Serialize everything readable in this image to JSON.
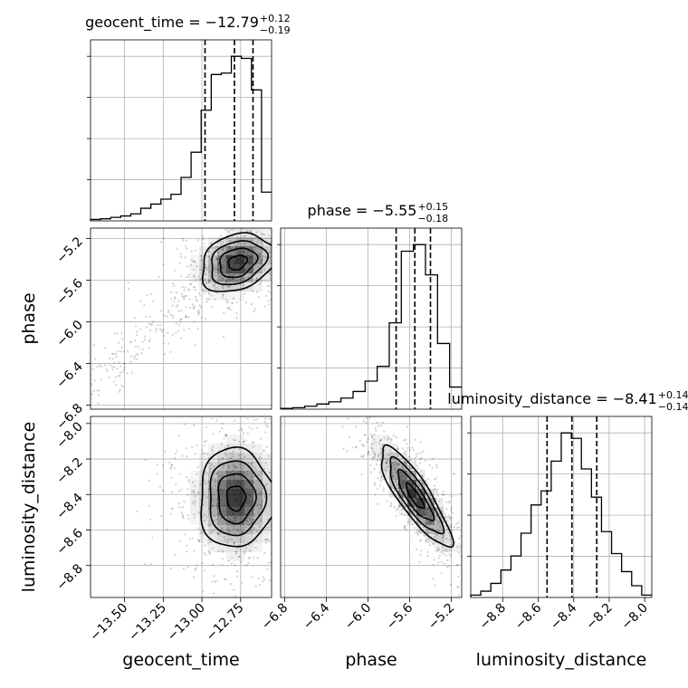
{
  "chart_data": {
    "type": "corner",
    "parameters": [
      "geocent_time",
      "phase",
      "luminosity_distance"
    ],
    "axis_labels": [
      "geocent_time",
      "phase",
      "luminosity_distance"
    ],
    "titles": [
      {
        "param": "geocent_time",
        "text": "geocent_time = −12.79",
        "sup": "+0.12",
        "sub": "−0.19"
      },
      {
        "param": "phase",
        "text": "phase = −5.55",
        "sup": "+0.15",
        "sub": "−0.18"
      },
      {
        "param": "luminosity_distance",
        "text": "luminosity_distance = −8.41",
        "sup": "+0.14",
        "sub": "−0.14"
      }
    ],
    "ranges": {
      "geocent_time": [
        -13.72,
        -12.55
      ],
      "phase": [
        -6.84,
        -5.1
      ],
      "luminosity_distance": [
        -8.98,
        -7.96
      ]
    },
    "ticks": {
      "geocent_time": [
        {
          "v": -13.5,
          "label": "−13.50"
        },
        {
          "v": -13.25,
          "label": "−13.25"
        },
        {
          "v": -13.0,
          "label": "−13.00"
        },
        {
          "v": -12.75,
          "label": "−12.75"
        }
      ],
      "phase": [
        {
          "v": -6.8,
          "label": "−6.8"
        },
        {
          "v": -6.4,
          "label": "−6.4"
        },
        {
          "v": -6.0,
          "label": "−6.0"
        },
        {
          "v": -5.6,
          "label": "−5.6"
        },
        {
          "v": -5.2,
          "label": "−5.2"
        }
      ],
      "luminosity_distance": [
        {
          "v": -8.8,
          "label": "−8.8"
        },
        {
          "v": -8.6,
          "label": "−8.6"
        },
        {
          "v": -8.4,
          "label": "−8.4"
        },
        {
          "v": -8.2,
          "label": "−8.2"
        },
        {
          "v": -8.0,
          "label": "−8.0"
        }
      ]
    },
    "quantiles": {
      "geocent_time": [
        -12.98,
        -12.79,
        -12.67
      ],
      "phase": [
        -5.73,
        -5.55,
        -5.4
      ],
      "luminosity_distance": [
        -8.55,
        -8.41,
        -8.27
      ]
    },
    "histograms": {
      "geocent_time": {
        "range": [
          -13.72,
          -12.55
        ],
        "counts": [
          0.2,
          0.3,
          0.5,
          0.7,
          1.0,
          1.8,
          2.4,
          3.1,
          3.8,
          6.2,
          9.8,
          15.8,
          20.9,
          21.1,
          23.5,
          23.2,
          18.7,
          4.1
        ]
      },
      "phase": {
        "range": [
          -6.84,
          -5.1
        ],
        "counts": [
          0.1,
          0.2,
          0.4,
          0.7,
          1.0,
          1.5,
          2.4,
          3.8,
          5.8,
          11.7,
          21.4,
          22.3,
          18.2,
          8.9,
          3.0
        ]
      },
      "luminosity_distance": {
        "range": [
          -8.98,
          -7.96
        ],
        "counts": [
          0.3,
          0.8,
          1.8,
          3.5,
          5.3,
          8.2,
          11.8,
          13.6,
          17.4,
          21.0,
          20.3,
          16.4,
          12.8,
          8.4,
          5.6,
          3.3,
          1.5,
          0.3
        ]
      }
    },
    "densities": [
      {
        "x": "geocent_time",
        "y": "phase",
        "center": [
          -12.77,
          -5.43
        ],
        "sigma": [
          0.12,
          0.14
        ],
        "rho": 0.25
      },
      {
        "x": "geocent_time",
        "y": "luminosity_distance",
        "center": [
          -12.78,
          -8.42
        ],
        "sigma": [
          0.12,
          0.14
        ],
        "rho": 0.0
      },
      {
        "x": "phase",
        "y": "luminosity_distance",
        "center": [
          -5.55,
          -8.41
        ],
        "sigma": [
          0.17,
          0.14
        ],
        "rho": -0.85
      }
    ],
    "grid": true,
    "colors": {
      "hist": "#000000",
      "quantile": "#000000",
      "density": "#000000",
      "grid": "#b0b0b0"
    }
  }
}
